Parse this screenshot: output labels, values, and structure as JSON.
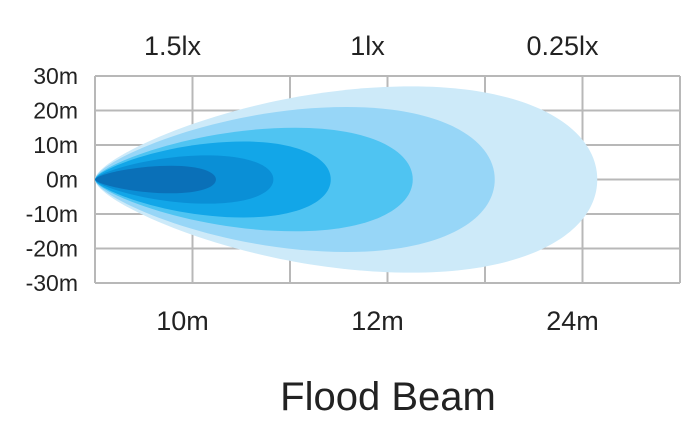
{
  "chart_data": {
    "type": "area",
    "title": "Flood Beam",
    "x_tick_labels": [
      "10m",
      "12m",
      "24m"
    ],
    "y_tick_labels": [
      "30m",
      "20m",
      "10m",
      "0m",
      "-10m",
      "-20m",
      "-30m"
    ],
    "y_values": [
      30,
      20,
      10,
      0,
      -10,
      -20,
      -30
    ],
    "ylim": [
      -30,
      30
    ],
    "top_labels": [
      "1.5lx",
      "1lx",
      "0.25lx"
    ],
    "grid": true,
    "beam_contours": [
      {
        "reach": 24.5,
        "half_width": 27,
        "color": "#cdeaf9"
      },
      {
        "reach": 19.5,
        "half_width": 21,
        "color": "#97d6f7"
      },
      {
        "reach": 15.5,
        "half_width": 15,
        "color": "#4fc4f2"
      },
      {
        "reach": 11.5,
        "half_width": 11,
        "color": "#12a6e8"
      },
      {
        "reach": 8.7,
        "half_width": 7,
        "color": "#0a8fd6"
      },
      {
        "reach": 5.9,
        "half_width": 4,
        "color": "#0a70b8"
      }
    ]
  }
}
